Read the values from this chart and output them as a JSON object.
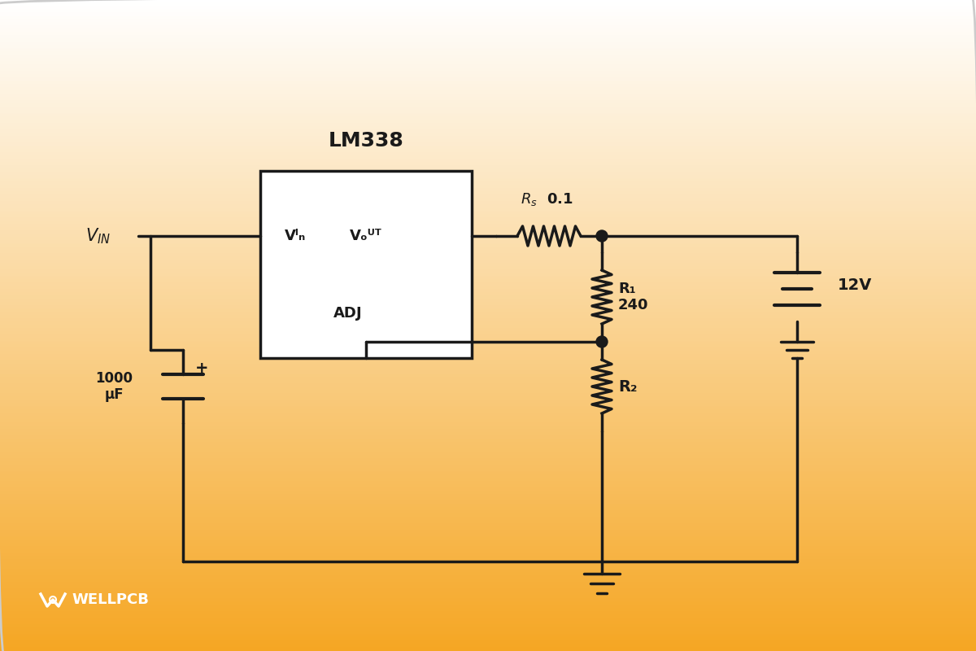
{
  "bg_color_top": "#ffffff",
  "bg_color_bottom": "#f5a623",
  "line_color": "#1a1a1a",
  "lw": 2.5,
  "title": "LM338",
  "component_labels": {
    "vin_label": "Vᴵₙ",
    "rs_label": "Rₛ  0.1",
    "r1_label": "R₁\n240",
    "r2_label": "R₂",
    "cap_label": "1000\nμF",
    "batt_label": "12V",
    "vin_pin": "Vᴵₙ",
    "vout_pin": "Vₒᵁᵀ",
    "adj_pin": "ADJ"
  },
  "wellpcb_text": "WELLPCB"
}
